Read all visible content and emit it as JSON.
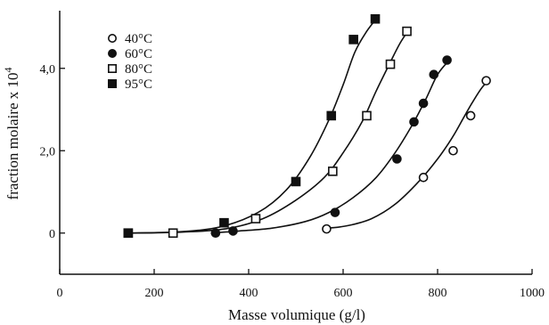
{
  "chart_data": {
    "type": "scatter",
    "title": "",
    "xlabel": "Masse volumique (g/l)",
    "ylabel": "fraction molaire x 10",
    "ylabel_exponent": "4",
    "xlim": [
      0,
      1000
    ],
    "ylim": [
      -1.0,
      5.4
    ],
    "x_ticks": [
      0,
      200,
      400,
      600,
      800,
      1000
    ],
    "x_tick_labels": [
      "0",
      "200",
      "400",
      "600",
      "800",
      "1000"
    ],
    "y_ticks": [
      0,
      2,
      4
    ],
    "y_tick_labels": [
      "0",
      "2,0",
      "4,0"
    ],
    "grid": false,
    "legend_position": "top-left",
    "series": [
      {
        "name": "40°C",
        "marker": "open-circle",
        "x": [
          565,
          770,
          833,
          870,
          903
        ],
        "y": [
          0.1,
          1.35,
          2.0,
          2.85,
          3.7
        ],
        "curve_x": [
          560,
          570,
          610,
          660,
          710,
          760,
          800,
          830,
          855,
          875,
          895,
          910
        ],
        "curve_y": [
          0.1,
          0.12,
          0.18,
          0.35,
          0.7,
          1.25,
          1.8,
          2.3,
          2.8,
          3.2,
          3.55,
          3.7
        ]
      },
      {
        "name": "60°C",
        "marker": "filled-circle",
        "x": [
          330,
          367,
          583,
          714,
          750,
          770,
          792,
          820
        ],
        "y": [
          0.0,
          0.05,
          0.5,
          1.8,
          2.7,
          3.15,
          3.85,
          4.2
        ],
        "curve_x": [
          320,
          380,
          450,
          520,
          570,
          620,
          670,
          710,
          745,
          775,
          800,
          825
        ],
        "curve_y": [
          0.0,
          0.05,
          0.12,
          0.28,
          0.5,
          0.85,
          1.35,
          1.95,
          2.6,
          3.25,
          3.85,
          4.2
        ]
      },
      {
        "name": "80°C",
        "marker": "open-square",
        "x": [
          145,
          240,
          415,
          578,
          650,
          700,
          735
        ],
        "y": [
          0.0,
          0.0,
          0.35,
          1.5,
          2.85,
          4.1,
          4.9
        ],
        "curve_x": [
          140,
          250,
          350,
          430,
          500,
          560,
          600,
          640,
          670,
          700,
          720,
          740
        ],
        "curve_y": [
          0.0,
          0.02,
          0.1,
          0.35,
          0.8,
          1.35,
          1.95,
          2.7,
          3.45,
          4.15,
          4.6,
          4.95
        ]
      },
      {
        "name": "95°C",
        "marker": "filled-square",
        "x": [
          145,
          348,
          500,
          575,
          622,
          668
        ],
        "y": [
          0.0,
          0.25,
          1.25,
          2.85,
          4.7,
          5.2
        ],
        "curve_x": [
          140,
          250,
          340,
          420,
          480,
          530,
          570,
          600,
          625,
          650,
          670
        ],
        "curve_y": [
          0.0,
          0.03,
          0.15,
          0.5,
          1.05,
          1.85,
          2.75,
          3.6,
          4.4,
          4.9,
          5.2
        ]
      }
    ]
  }
}
